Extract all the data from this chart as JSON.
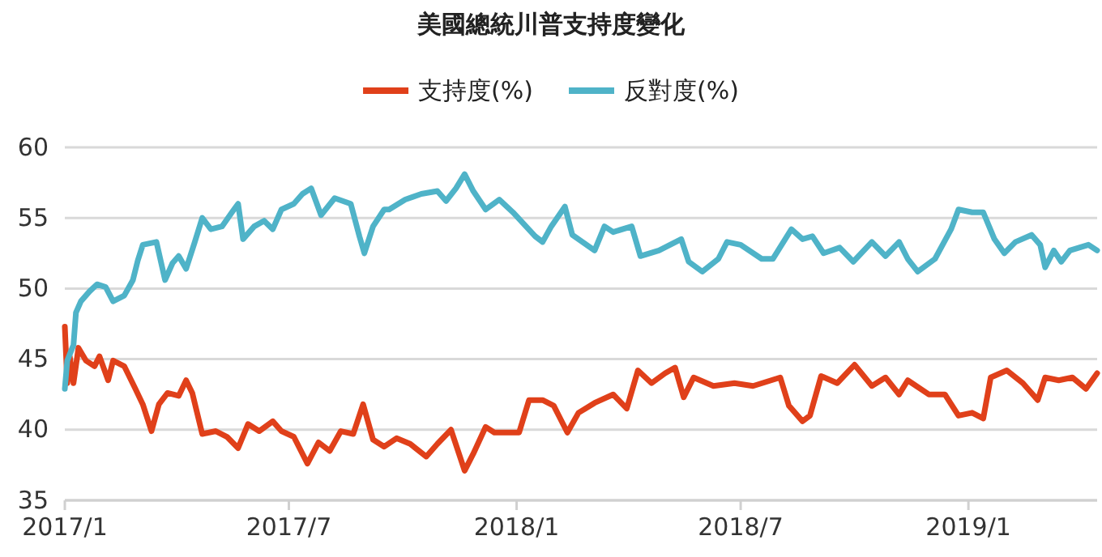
{
  "chart_data": {
    "type": "line",
    "title": "美國總統川普支持度變化",
    "legend": "top",
    "grid": "y",
    "marker": "none",
    "line_style": "solid",
    "xlim": [
      "2017-01-01",
      "2019-04-15"
    ],
    "xticks": [
      {
        "value": "2017-01-01",
        "label": "2017/1"
      },
      {
        "value": "2017-07-01",
        "label": "2017/7"
      },
      {
        "value": "2018-01-01",
        "label": "2018/1"
      },
      {
        "value": "2018-07-01",
        "label": "2018/7"
      },
      {
        "value": "2019-01-01",
        "label": "2019/1"
      }
    ],
    "ylim": [
      35,
      60
    ],
    "yticks": [
      35,
      40,
      45,
      50,
      55,
      60
    ],
    "series": [
      {
        "name": "支持度(%)",
        "color": "#e0401a",
        "x": [
          "2017-01-01",
          "2017-01-03",
          "2017-01-05",
          "2017-01-08",
          "2017-01-12",
          "2017-01-18",
          "2017-01-25",
          "2017-01-29",
          "2017-02-05",
          "2017-02-09",
          "2017-02-18",
          "2017-02-27",
          "2017-03-05",
          "2017-03-12",
          "2017-03-18",
          "2017-03-25",
          "2017-04-03",
          "2017-04-09",
          "2017-04-14",
          "2017-04-22",
          "2017-05-03",
          "2017-05-12",
          "2017-05-21",
          "2017-05-29",
          "2017-06-07",
          "2017-06-18",
          "2017-06-25",
          "2017-07-05",
          "2017-07-16",
          "2017-07-25",
          "2017-08-03",
          "2017-08-12",
          "2017-08-22",
          "2017-08-30",
          "2017-09-07",
          "2017-09-16",
          "2017-09-26",
          "2017-10-07",
          "2017-10-20",
          "2017-10-29",
          "2017-11-09",
          "2017-11-20",
          "2017-11-27",
          "2017-12-07",
          "2017-12-14",
          "2017-12-25",
          "2018-01-03",
          "2018-01-11",
          "2018-01-22",
          "2018-01-31",
          "2018-02-11",
          "2018-02-20",
          "2018-03-05",
          "2018-03-20",
          "2018-03-31",
          "2018-04-09",
          "2018-04-20",
          "2018-05-01",
          "2018-05-09",
          "2018-05-16",
          "2018-05-24",
          "2018-06-09",
          "2018-06-26",
          "2018-07-11",
          "2018-08-02",
          "2018-08-09",
          "2018-08-20",
          "2018-08-26",
          "2018-09-04",
          "2018-09-17",
          "2018-10-01",
          "2018-10-15",
          "2018-10-26",
          "2018-11-06",
          "2018-11-13",
          "2018-11-30",
          "2018-12-13",
          "2018-12-24",
          "2019-01-04",
          "2019-01-13",
          "2019-01-19",
          "2019-02-01",
          "2019-02-14",
          "2019-02-26",
          "2019-03-04",
          "2019-03-15",
          "2019-03-26",
          "2019-04-06",
          "2019-04-15"
        ],
        "values": [
          47.3,
          43.3,
          45.2,
          43.3,
          45.8,
          44.9,
          44.5,
          45.2,
          43.5,
          44.9,
          44.5,
          42.9,
          41.8,
          39.9,
          41.8,
          42.6,
          42.4,
          43.5,
          42.6,
          39.7,
          39.9,
          39.5,
          38.7,
          40.4,
          39.9,
          40.6,
          39.9,
          39.5,
          37.6,
          39.1,
          38.5,
          39.9,
          39.7,
          41.8,
          39.3,
          38.8,
          39.4,
          39.0,
          38.1,
          39.0,
          40.0,
          37.1,
          38.3,
          40.2,
          39.8,
          39.8,
          39.8,
          42.1,
          42.1,
          41.7,
          39.8,
          41.2,
          41.9,
          42.5,
          41.5,
          44.2,
          43.3,
          44.0,
          44.4,
          42.3,
          43.7,
          43.1,
          43.3,
          43.1,
          43.7,
          41.7,
          40.6,
          41.0,
          43.8,
          43.3,
          44.6,
          43.1,
          43.7,
          42.5,
          43.5,
          42.5,
          42.5,
          41.0,
          41.2,
          40.8,
          43.7,
          44.2,
          43.3,
          42.1,
          43.7,
          43.5,
          43.7,
          42.9,
          44.0
        ]
      },
      {
        "name": "反對度(%)",
        "color": "#4fb3c8",
        "x": [
          "2017-01-01",
          "2017-01-03",
          "2017-01-08",
          "2017-01-10",
          "2017-01-14",
          "2017-01-21",
          "2017-01-27",
          "2017-02-03",
          "2017-02-09",
          "2017-02-18",
          "2017-02-25",
          "2017-03-01",
          "2017-03-05",
          "2017-03-16",
          "2017-03-23",
          "2017-03-29",
          "2017-04-03",
          "2017-04-09",
          "2017-04-16",
          "2017-04-22",
          "2017-04-29",
          "2017-05-08",
          "2017-05-16",
          "2017-05-21",
          "2017-05-25",
          "2017-06-03",
          "2017-06-11",
          "2017-06-18",
          "2017-06-25",
          "2017-07-05",
          "2017-07-12",
          "2017-07-19",
          "2017-07-27",
          "2017-08-07",
          "2017-08-20",
          "2017-08-27",
          "2017-08-31",
          "2017-09-07",
          "2017-09-16",
          "2017-09-20",
          "2017-10-03",
          "2017-10-16",
          "2017-10-29",
          "2017-11-05",
          "2017-11-13",
          "2017-11-20",
          "2017-11-27",
          "2017-12-07",
          "2017-12-18",
          "2017-12-29",
          "2018-01-16",
          "2018-01-22",
          "2018-01-29",
          "2018-02-09",
          "2018-02-15",
          "2018-03-05",
          "2018-03-13",
          "2018-03-20",
          "2018-04-04",
          "2018-04-11",
          "2018-04-26",
          "2018-05-14",
          "2018-05-20",
          "2018-05-31",
          "2018-06-13",
          "2018-06-20",
          "2018-07-01",
          "2018-07-18",
          "2018-07-27",
          "2018-08-11",
          "2018-08-20",
          "2018-08-28",
          "2018-09-06",
          "2018-09-19",
          "2018-09-30",
          "2018-10-15",
          "2018-10-26",
          "2018-11-06",
          "2018-11-13",
          "2018-11-21",
          "2018-12-05",
          "2018-12-18",
          "2018-12-24",
          "2019-01-04",
          "2019-01-13",
          "2019-01-22",
          "2019-01-30",
          "2019-02-08",
          "2019-02-21",
          "2019-02-28",
          "2019-03-04",
          "2019-03-11",
          "2019-03-17",
          "2019-03-24",
          "2019-04-08",
          "2019-04-15"
        ],
        "values": [
          42.9,
          44.9,
          46.0,
          48.3,
          49.1,
          49.8,
          50.3,
          50.1,
          49.1,
          49.5,
          50.6,
          52.0,
          53.1,
          53.3,
          50.6,
          51.8,
          52.3,
          51.4,
          53.3,
          55.0,
          54.2,
          54.4,
          55.4,
          56.0,
          53.5,
          54.4,
          54.8,
          54.2,
          55.6,
          56.0,
          56.7,
          57.1,
          55.2,
          56.4,
          56.0,
          53.7,
          52.5,
          54.4,
          55.6,
          55.6,
          56.3,
          56.7,
          56.9,
          56.2,
          57.1,
          58.1,
          56.9,
          55.6,
          56.3,
          55.4,
          53.7,
          53.3,
          54.4,
          55.8,
          53.8,
          52.7,
          54.4,
          54.0,
          54.4,
          52.3,
          52.7,
          53.5,
          51.9,
          51.2,
          52.1,
          53.3,
          53.1,
          52.1,
          52.1,
          54.2,
          53.5,
          53.7,
          52.5,
          52.9,
          51.9,
          53.3,
          52.3,
          53.3,
          52.1,
          51.2,
          52.1,
          54.2,
          55.6,
          55.4,
          55.4,
          53.5,
          52.5,
          53.3,
          53.8,
          53.1,
          51.5,
          52.7,
          51.9,
          52.7,
          53.1,
          52.7
        ]
      }
    ]
  }
}
